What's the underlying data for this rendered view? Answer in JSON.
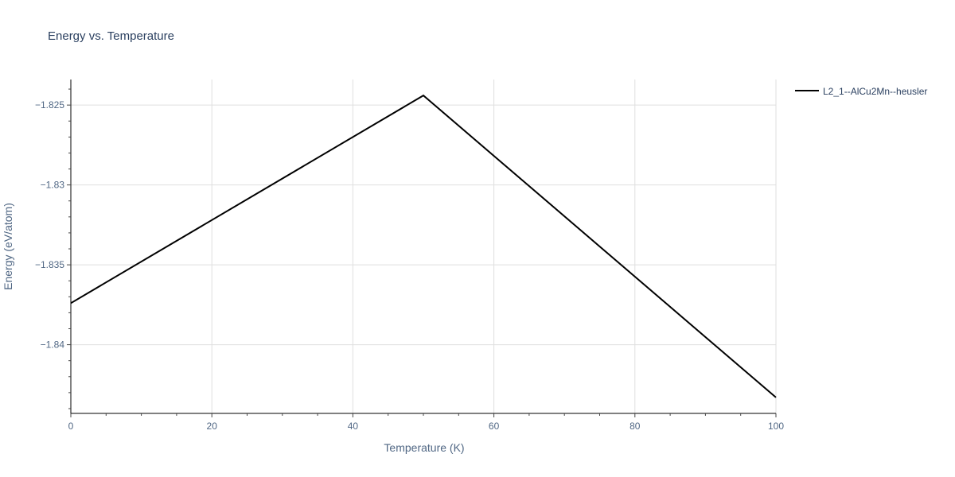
{
  "chart_data": {
    "type": "line",
    "title": "Energy vs. Temperature",
    "xlabel": "Temperature (K)",
    "ylabel": "Energy (eV/atom)",
    "xlim": [
      0,
      100
    ],
    "ylim": [
      -1.8443,
      -1.8234
    ],
    "x_ticks": [
      0,
      20,
      40,
      60,
      80,
      100
    ],
    "x_tick_labels": [
      "0",
      "20",
      "40",
      "60",
      "80",
      "100"
    ],
    "y_ticks": [
      -1.825,
      -1.83,
      -1.835,
      -1.84
    ],
    "y_tick_labels": [
      "−1.825",
      "−1.83",
      "−1.835",
      "−1.84"
    ],
    "x_minor_step": 5,
    "y_minor_step": 0.001,
    "grid": true,
    "legend_position": "top-right",
    "series": [
      {
        "name": "L2_1--AlCu2Mn--heusler",
        "color": "#000000",
        "x": [
          0,
          50,
          100
        ],
        "y": [
          -1.8374,
          -1.8244,
          -1.8433
        ]
      }
    ]
  }
}
